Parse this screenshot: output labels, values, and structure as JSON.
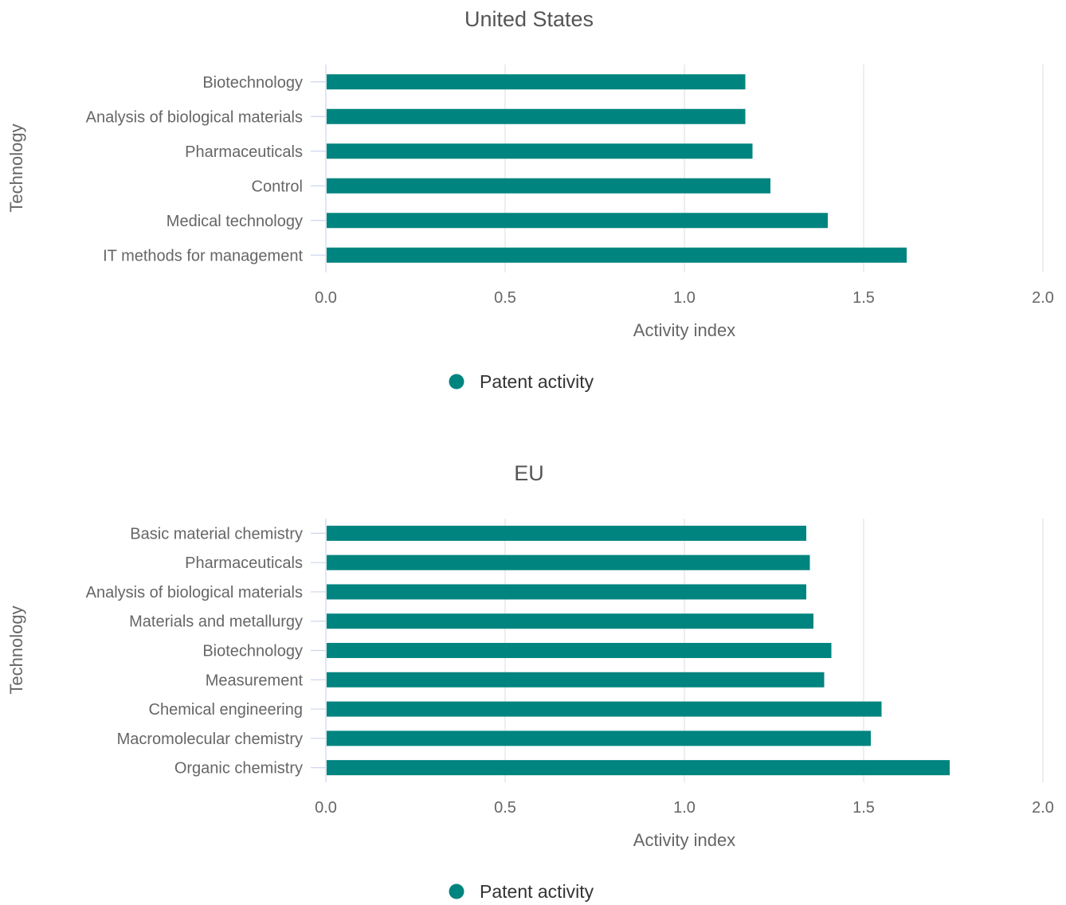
{
  "colors": {
    "bar": "#00847f",
    "text": "#666666",
    "title": "#555555",
    "legend_text": "#333333",
    "grid": "#e3e3e3",
    "axis": "#ccd6eb"
  },
  "chart_data": [
    {
      "type": "bar",
      "orientation": "horizontal",
      "title": "United States",
      "xlabel": "Activity index",
      "ylabel": "Technology",
      "xlim": [
        0,
        2
      ],
      "xticks": [
        "0.0",
        "0.5",
        "1.0",
        "1.5",
        "2.0"
      ],
      "grid": true,
      "legend_position": "bottom-center",
      "categories": [
        "Biotechnology",
        "Analysis of biological materials",
        "Pharmaceuticals",
        "Control",
        "Medical technology",
        "IT methods for management"
      ],
      "series": [
        {
          "name": "Patent activity",
          "values": [
            1.17,
            1.17,
            1.19,
            1.24,
            1.4,
            1.62
          ]
        }
      ]
    },
    {
      "type": "bar",
      "orientation": "horizontal",
      "title": "EU",
      "xlabel": "Activity index",
      "ylabel": "Technology",
      "xlim": [
        0,
        2
      ],
      "xticks": [
        "0.0",
        "0.5",
        "1.0",
        "1.5",
        "2.0"
      ],
      "grid": true,
      "legend_position": "bottom-center",
      "categories": [
        "Basic material chemistry",
        "Pharmaceuticals",
        "Analysis of biological materials",
        "Materials and metallurgy",
        "Biotechnology",
        "Measurement",
        "Chemical engineering",
        "Macromolecular chemistry",
        "Organic chemistry"
      ],
      "series": [
        {
          "name": "Patent activity",
          "values": [
            1.34,
            1.35,
            1.34,
            1.36,
            1.41,
            1.39,
            1.55,
            1.52,
            1.74
          ]
        }
      ]
    }
  ]
}
